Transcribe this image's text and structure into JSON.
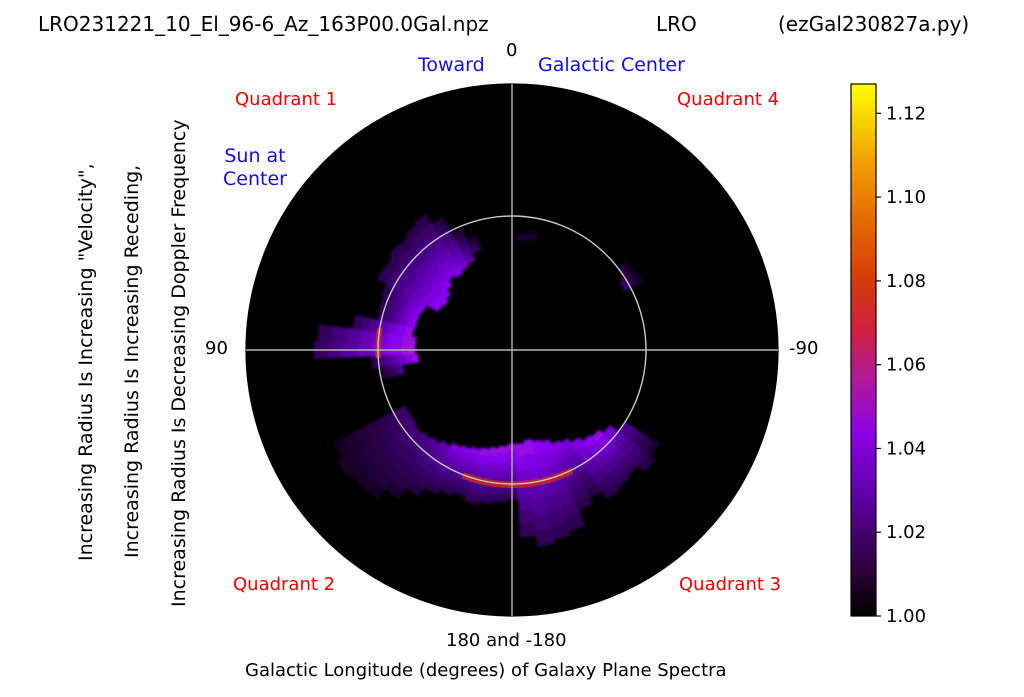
{
  "header": {
    "file_name": "LRO231221_10_El_96-6_Az_163P00.0Gal.npz",
    "station": "LRO",
    "program": "(ezGal230827a.py)"
  },
  "annotations": {
    "toward": "Toward",
    "galactic_center": "Galactic Center",
    "sun_line1": "Sun at",
    "sun_line2": "Center",
    "quadrant_1": "Quadrant 1",
    "quadrant_2": "Quadrant 2",
    "quadrant_3": "Quadrant 3",
    "quadrant_4": "Quadrant 4",
    "colors": {
      "blue_text": "#1010e6",
      "red_text": "#f00000"
    }
  },
  "axes": {
    "top_label": "0",
    "left_label": "90",
    "right_label": "-90",
    "bottom_label": "180 and -180",
    "xlabel": "Galactic Longitude (degrees) of Galaxy Plane Spectra",
    "ylabel_lines": [
      "Increasing Radius Is Increasing \"Velocity\",",
      "Increasing Radius Is Increasing Receding,",
      "Increasing Radius Is Decreasing Doppler Frequency"
    ]
  },
  "chart_data": {
    "type": "heatmap",
    "projection": "polar",
    "theta_zero_location": "top",
    "theta_direction": "counterclockwise",
    "background_color": "#000000",
    "grid": true,
    "reference_circle_fraction_of_radius": 0.5,
    "colormap": "gnuplot",
    "colorbar": {
      "min": 1.0,
      "max": 1.127,
      "ticks": [
        1.0,
        1.02,
        1.04,
        1.06,
        1.08,
        1.1,
        1.12
      ],
      "tick_labels": [
        "1.00",
        "1.02",
        "1.04",
        "1.06",
        "1.08",
        "1.10",
        "1.12"
      ]
    },
    "spectra_longitudes_deg": [
      -5,
      -10,
      -15,
      -20,
      -25,
      -30,
      -35,
      -40,
      -45,
      -50,
      -55,
      20,
      25,
      30,
      35,
      40,
      45,
      50,
      55,
      60,
      65,
      70,
      75,
      80,
      85,
      90,
      95,
      120,
      125,
      130,
      135,
      140,
      145,
      150,
      155,
      160,
      165,
      170,
      175,
      180,
      -175,
      -170,
      -165,
      -160,
      -155,
      -150,
      -145,
      -140,
      -135,
      -130,
      -125,
      -120,
      -115
    ],
    "approx_peak_value": 1.065,
    "note_peak_locations": "ring near reference circle at longitudes ~80-100 and ~160-200"
  }
}
